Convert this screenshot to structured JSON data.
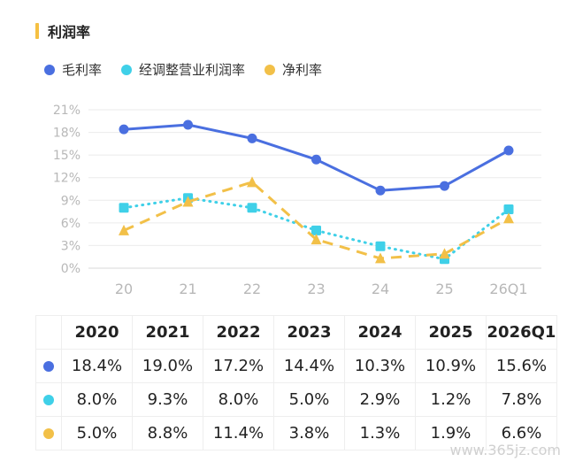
{
  "title": "利润率",
  "watermark": "www.365jz.com",
  "colors": {
    "accent": "#f5c042",
    "gross": "#4a6fe0",
    "adjusted": "#3fd0e8",
    "net": "#f2c048"
  },
  "chart_data": {
    "type": "line",
    "categories": [
      "20",
      "21",
      "22",
      "23",
      "24",
      "25",
      "26Q1"
    ],
    "yticks": [
      "0%",
      "3%",
      "6%",
      "9%",
      "12%",
      "15%",
      "18%",
      "21%"
    ],
    "ylim": [
      0,
      21
    ],
    "grid": true,
    "legend_position": "top-left",
    "series": [
      {
        "name": "毛利率",
        "values": [
          18.4,
          19.0,
          17.2,
          14.4,
          10.3,
          10.9,
          15.6
        ],
        "color": "#4a6fe0",
        "style": "solid",
        "marker": "circle"
      },
      {
        "name": "经调整营业利润率",
        "values": [
          8.0,
          9.3,
          8.0,
          5.0,
          2.9,
          1.2,
          7.8
        ],
        "color": "#3fd0e8",
        "style": "dotted",
        "marker": "square"
      },
      {
        "name": "净利率",
        "values": [
          5.0,
          8.8,
          11.4,
          3.8,
          1.3,
          1.9,
          6.6
        ],
        "color": "#f2c048",
        "style": "dashed",
        "marker": "triangle"
      }
    ]
  },
  "table": {
    "headers": [
      "2020",
      "2021",
      "2022",
      "2023",
      "2024",
      "2025",
      "2026Q1"
    ],
    "rows": [
      {
        "color": "#4a6fe0",
        "cells": [
          "18.4%",
          "19.0%",
          "17.2%",
          "14.4%",
          "10.3%",
          "10.9%",
          "15.6%"
        ]
      },
      {
        "color": "#3fd0e8",
        "cells": [
          "8.0%",
          "9.3%",
          "8.0%",
          "5.0%",
          "2.9%",
          "1.2%",
          "7.8%"
        ]
      },
      {
        "color": "#f2c048",
        "cells": [
          "5.0%",
          "8.8%",
          "11.4%",
          "3.8%",
          "1.3%",
          "1.9%",
          "6.6%"
        ]
      }
    ]
  }
}
